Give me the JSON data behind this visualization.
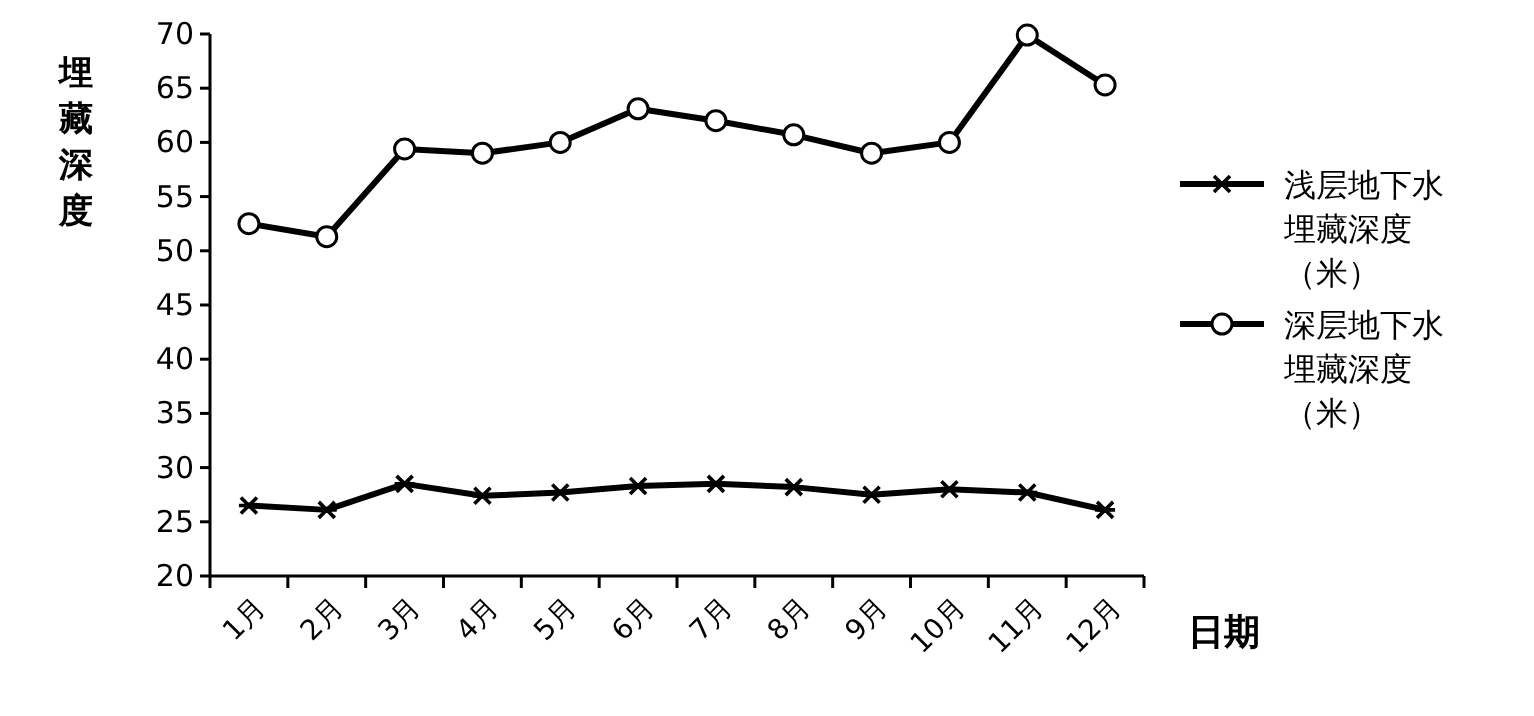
{
  "chart_data": {
    "type": "line",
    "ylabel": "埋藏深度",
    "xlabel": "日期",
    "categories": [
      "1月",
      "2月",
      "3月",
      "4月",
      "5月",
      "6月",
      "7月",
      "8月",
      "9月",
      "10月",
      "11月",
      "12月"
    ],
    "series": [
      {
        "name": "浅层地下水埋藏深度（米）",
        "color": "#000000",
        "marker": "cross",
        "values": [
          26.5,
          26.1,
          28.5,
          27.4,
          27.7,
          28.3,
          28.5,
          28.2,
          27.5,
          28.0,
          27.7,
          26.1
        ]
      },
      {
        "name": "深层地下水埋藏深度（米）",
        "color": "#000000",
        "marker": "circle",
        "values": [
          52.5,
          51.3,
          59.4,
          59.0,
          60.0,
          63.1,
          62.0,
          60.7,
          59.0,
          60.0,
          69.9,
          65.3
        ]
      }
    ],
    "ylim": [
      20,
      70
    ],
    "yticks": [
      20,
      25,
      30,
      35,
      40,
      45,
      50,
      55,
      60,
      65,
      70
    ],
    "grid": false,
    "legend": "right",
    "line_style": "solid"
  }
}
